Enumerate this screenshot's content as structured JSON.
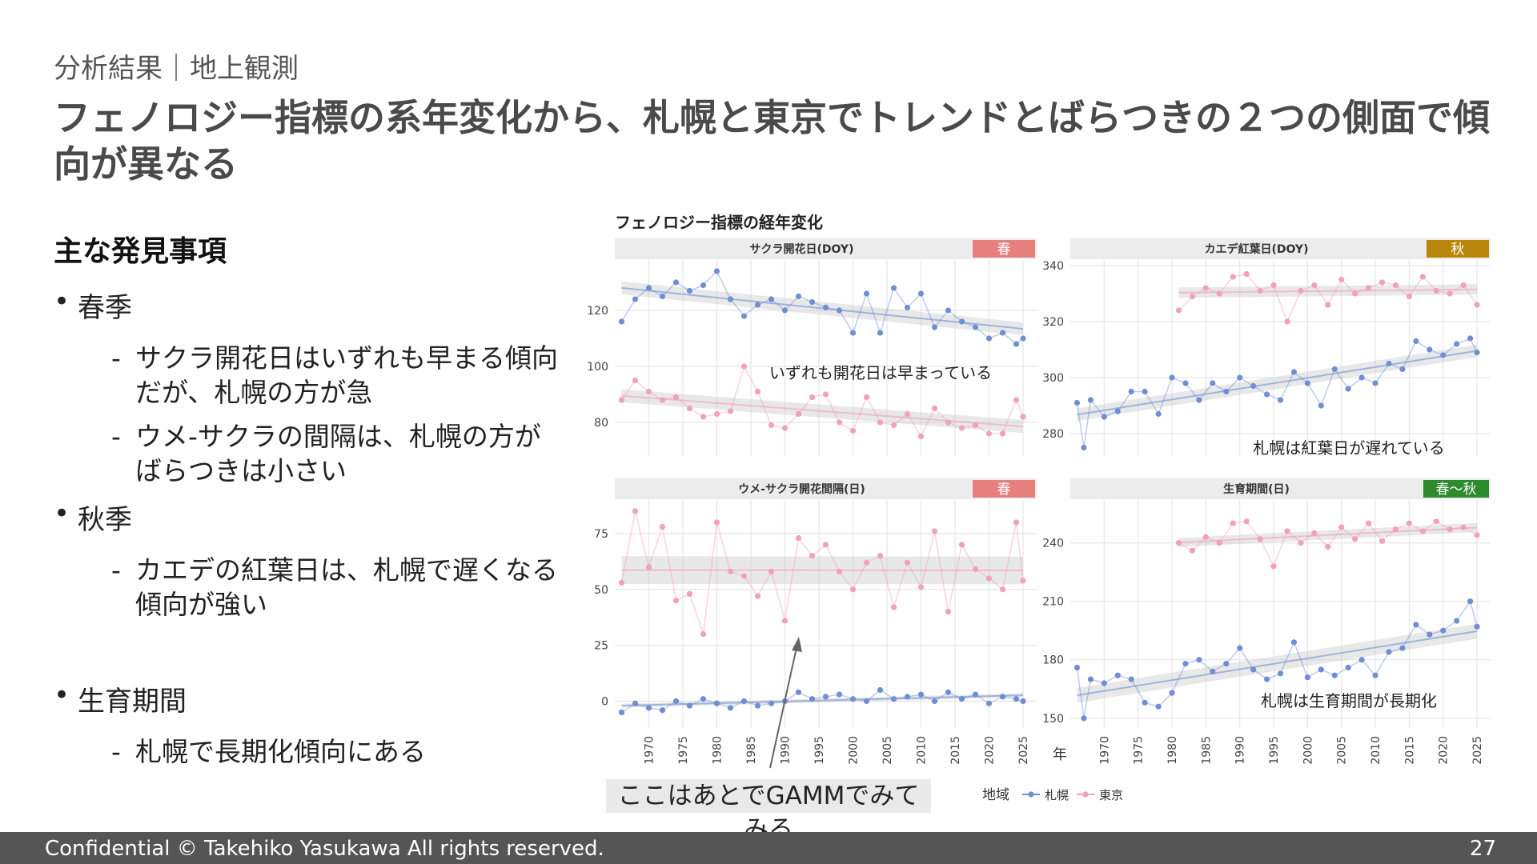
{
  "header": {
    "subtitle": "分析結果｜地上観測",
    "title": "フェノロジー指標の系年変化から、札幌と東京でトレンドとばらつきの２つの側面で傾向が異なる"
  },
  "findings": {
    "heading": "主な発見事項",
    "sections": [
      {
        "label": "春季",
        "items": [
          "サクラ開花日はいずれも早まる傾向だが、札幌の方が急",
          "ウメ-サクラの間隔は、札幌の方がばらつきは小さい"
        ]
      },
      {
        "label": "秋季",
        "items": [
          "カエデの紅葉日は、札幌で遅くなる傾向が強い"
        ]
      },
      {
        "label": "生育期間",
        "items": [
          "札幌で長期化傾向にある"
        ]
      }
    ]
  },
  "callout": {
    "text": "ここはあとでGAMMでみてみる"
  },
  "footer": {
    "copyright": "Confidential  © Takehiko Yasukawa  All rights reserved.",
    "page": "27"
  },
  "colors": {
    "sapporo": "#6f8fd4",
    "tokyo": "#f2a0bb",
    "spring": "#e87f7f",
    "autumn": "#b8860b",
    "season_span": "#2d8a2d",
    "strip": "#ececec",
    "grid": "#e6e6e6"
  },
  "chart_data": {
    "type": "scatter",
    "title": "フェノロジー指標の経年変化",
    "xlabel": "年",
    "x_ticks": [
      1970,
      1975,
      1980,
      1985,
      1990,
      1995,
      2000,
      2005,
      2010,
      2015,
      2020,
      2025
    ],
    "legend": {
      "title": "地域",
      "entries": [
        "札幌",
        "東京"
      ],
      "position": "bottom"
    },
    "panels": [
      {
        "title": "サクラ開花日(DOY)",
        "season_label": "春",
        "season_color": "#e87f7f",
        "x_range": [
          1965,
          2027
        ],
        "ylim": [
          68,
          138
        ],
        "y_ticks": [
          80,
          100,
          120
        ],
        "annotation": "いずれも開花日は早まっている",
        "series": [
          {
            "name": "札幌",
            "x": [
              1966,
              1968,
              1970,
              1972,
              1974,
              1976,
              1978,
              1980,
              1982,
              1984,
              1986,
              1988,
              1990,
              1992,
              1994,
              1996,
              1998,
              2000,
              2002,
              2004,
              2006,
              2008,
              2010,
              2012,
              2014,
              2016,
              2018,
              2020,
              2022,
              2024,
              2025
            ],
            "y": [
              116,
              124,
              128,
              125,
              130,
              127,
              129,
              134,
              124,
              118,
              122,
              124,
              120,
              125,
              123,
              121,
              120,
              112,
              126,
              112,
              128,
              121,
              126,
              114,
              120,
              116,
              114,
              110,
              112,
              108,
              110
            ]
          },
          {
            "name": "東京",
            "x": [
              1966,
              1968,
              1970,
              1972,
              1974,
              1976,
              1978,
              1980,
              1982,
              1984,
              1986,
              1988,
              1990,
              1992,
              1994,
              1996,
              1998,
              2000,
              2002,
              2004,
              2006,
              2008,
              2010,
              2012,
              2014,
              2016,
              2018,
              2020,
              2022,
              2024,
              2025
            ],
            "y": [
              88,
              95,
              91,
              88,
              89,
              85,
              82,
              83,
              84,
              100,
              91,
              79,
              78,
              83,
              89,
              90,
              80,
              77,
              89,
              80,
              79,
              83,
              75,
              85,
              80,
              78,
              79,
              76,
              76,
              88,
              82
            ]
          }
        ]
      },
      {
        "title": "カエデ紅葉日(DOY)",
        "season_label": "秋",
        "season_color": "#b8860b",
        "x_range": [
          1965,
          2027
        ],
        "ylim": [
          272,
          342
        ],
        "y_ticks": [
          280,
          300,
          320,
          340
        ],
        "annotation": "札幌は紅葉日が遅れている",
        "series": [
          {
            "name": "札幌",
            "x": [
              1966,
              1967,
              1968,
              1970,
              1972,
              1974,
              1976,
              1978,
              1980,
              1982,
              1984,
              1986,
              1988,
              1990,
              1992,
              1994,
              1996,
              1998,
              2000,
              2002,
              2004,
              2006,
              2008,
              2010,
              2012,
              2014,
              2016,
              2018,
              2020,
              2022,
              2024,
              2025
            ],
            "y": [
              291,
              275,
              292,
              286,
              288,
              295,
              295,
              287,
              300,
              298,
              292,
              298,
              295,
              300,
              297,
              294,
              292,
              302,
              298,
              290,
              303,
              296,
              300,
              298,
              305,
              303,
              313,
              310,
              308,
              312,
              314,
              309
            ]
          },
          {
            "name": "東京",
            "x": [
              1981,
              1983,
              1985,
              1987,
              1989,
              1991,
              1993,
              1995,
              1997,
              1999,
              2001,
              2003,
              2005,
              2007,
              2009,
              2011,
              2013,
              2015,
              2017,
              2019,
              2021,
              2023,
              2025
            ],
            "y": [
              324,
              329,
              332,
              330,
              336,
              337,
              331,
              333,
              320,
              331,
              333,
              326,
              335,
              330,
              332,
              334,
              333,
              329,
              336,
              331,
              330,
              333,
              326
            ]
          }
        ]
      },
      {
        "title": "ウメ-サクラ開花間隔(日)",
        "season_label": "春",
        "season_color": "#e87f7f",
        "x_range": [
          1965,
          2027
        ],
        "ylim": [
          -12,
          90
        ],
        "y_ticks": [
          0,
          25,
          50,
          75
        ],
        "annotation": "",
        "series": [
          {
            "name": "札幌",
            "x": [
              1966,
              1968,
              1970,
              1972,
              1974,
              1976,
              1978,
              1980,
              1982,
              1984,
              1986,
              1988,
              1990,
              1992,
              1994,
              1996,
              1998,
              2000,
              2002,
              2004,
              2006,
              2008,
              2010,
              2012,
              2014,
              2016,
              2018,
              2020,
              2022,
              2024,
              2025
            ],
            "y": [
              -5,
              -1,
              -3,
              -4,
              0,
              -2,
              1,
              -1,
              -3,
              0,
              -2,
              -1,
              0,
              4,
              1,
              2,
              3,
              1,
              0,
              5,
              1,
              2,
              3,
              0,
              4,
              1,
              3,
              -1,
              2,
              1,
              0
            ]
          },
          {
            "name": "東京",
            "x": [
              1966,
              1968,
              1970,
              1972,
              1974,
              1976,
              1978,
              1980,
              1982,
              1984,
              1986,
              1988,
              1990,
              1992,
              1994,
              1996,
              1998,
              2000,
              2002,
              2004,
              2006,
              2008,
              2010,
              2012,
              2014,
              2016,
              2018,
              2020,
              2022,
              2024,
              2025
            ],
            "y": [
              53,
              85,
              60,
              78,
              45,
              48,
              30,
              80,
              58,
              56,
              47,
              58,
              36,
              73,
              65,
              70,
              58,
              50,
              62,
              65,
              42,
              62,
              51,
              76,
              40,
              70,
              59,
              55,
              50,
              80,
              54
            ]
          }
        ]
      },
      {
        "title": "生育期間(日)",
        "season_label": "春～秋",
        "season_color": "#2d8a2d",
        "x_range": [
          1965,
          2027
        ],
        "ylim": [
          145,
          262
        ],
        "y_ticks": [
          150,
          180,
          210,
          240
        ],
        "annotation": "札幌は生育期間が長期化",
        "series": [
          {
            "name": "札幌",
            "x": [
              1966,
              1967,
              1968,
              1970,
              1972,
              1974,
              1976,
              1978,
              1980,
              1982,
              1984,
              1986,
              1988,
              1990,
              1992,
              1994,
              1996,
              1998,
              2000,
              2002,
              2004,
              2006,
              2008,
              2010,
              2012,
              2014,
              2016,
              2018,
              2020,
              2022,
              2024,
              2025
            ],
            "y": [
              176,
              150,
              170,
              168,
              172,
              170,
              158,
              156,
              163,
              178,
              180,
              174,
              178,
              186,
              175,
              170,
              173,
              189,
              171,
              175,
              172,
              176,
              180,
              172,
              184,
              186,
              198,
              193,
              195,
              200,
              210,
              197
            ]
          },
          {
            "name": "東京",
            "x": [
              1981,
              1983,
              1985,
              1987,
              1989,
              1991,
              1993,
              1995,
              1997,
              1999,
              2001,
              2003,
              2005,
              2007,
              2009,
              2011,
              2013,
              2015,
              2017,
              2019,
              2021,
              2023,
              2025
            ],
            "y": [
              240,
              236,
              243,
              240,
              250,
              251,
              242,
              228,
              246,
              240,
              245,
              238,
              248,
              242,
              250,
              241,
              247,
              250,
              246,
              251,
              247,
              248,
              244
            ]
          }
        ]
      }
    ]
  }
}
